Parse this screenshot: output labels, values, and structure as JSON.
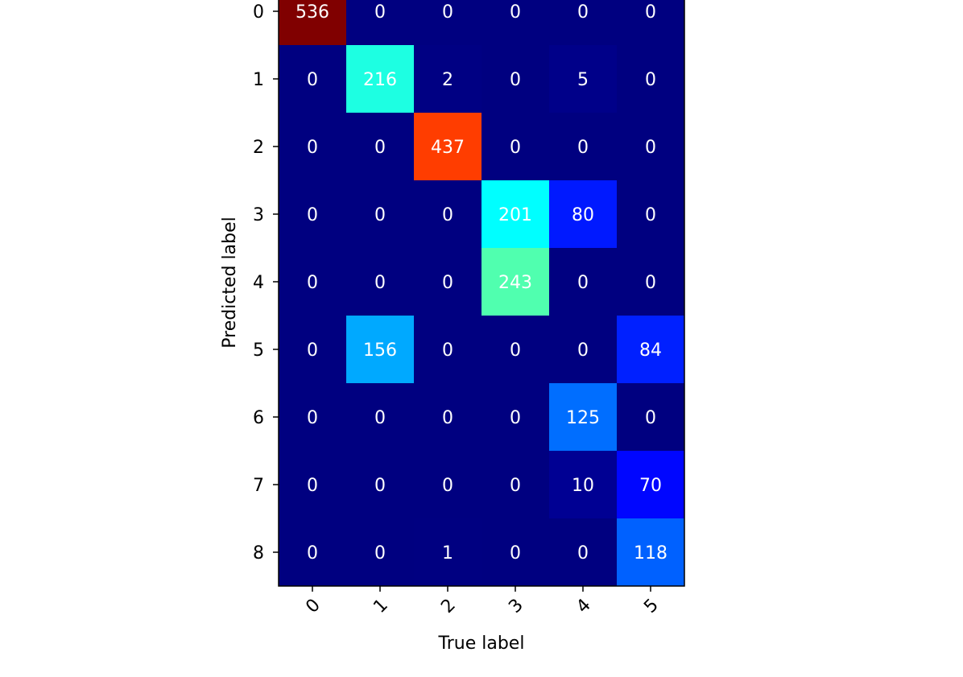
{
  "chart_data": {
    "type": "heatmap",
    "title": "",
    "xlabel": "True label",
    "ylabel": "Predicted label",
    "x_categories": [
      "0",
      "1",
      "2",
      "3",
      "4",
      "5"
    ],
    "y_categories": [
      "0",
      "1",
      "2",
      "3",
      "4",
      "5",
      "6",
      "7",
      "8"
    ],
    "values": [
      [
        536,
        0,
        0,
        0,
        0,
        0
      ],
      [
        0,
        216,
        2,
        0,
        5,
        0
      ],
      [
        0,
        0,
        437,
        0,
        0,
        0
      ],
      [
        0,
        0,
        0,
        201,
        80,
        0
      ],
      [
        0,
        0,
        0,
        243,
        0,
        0
      ],
      [
        0,
        156,
        0,
        0,
        0,
        84
      ],
      [
        0,
        0,
        0,
        0,
        125,
        0
      ],
      [
        0,
        0,
        0,
        0,
        10,
        70
      ],
      [
        0,
        0,
        1,
        0,
        0,
        118
      ]
    ],
    "colormap": "jet",
    "value_range": [
      0,
      536
    ],
    "text_color": "#ffffff"
  }
}
